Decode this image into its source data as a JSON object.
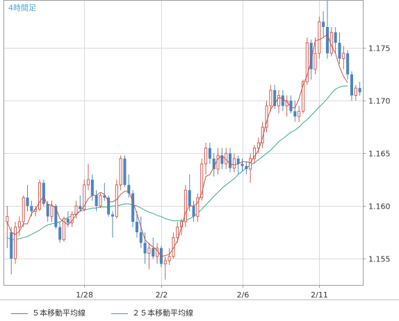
{
  "chart_data": {
    "type": "candlestick",
    "title": "4時間足",
    "xlabel": "",
    "ylabel": "",
    "ylim": [
      1.1525,
      1.1795
    ],
    "y_ticks": [
      "1.155",
      "1.160",
      "1.165",
      "1.170",
      "1.175"
    ],
    "y_tick_values": [
      1.155,
      1.16,
      1.165,
      1.17,
      1.175
    ],
    "x_ticks": [
      {
        "label": "1/28",
        "index": 19
      },
      {
        "label": "2/2",
        "index": 38
      },
      {
        "label": "2/6",
        "index": 58
      },
      {
        "label": "2/11",
        "index": 77
      }
    ],
    "grid": true,
    "legend_position": "bottom",
    "colors": {
      "up": "#d25a4f",
      "down": "#4a86c0",
      "ma5": "#c85040",
      "ma25": "#2eaa88",
      "grid": "#d9d9d9",
      "title": "#4aa6d8",
      "axis_text": "#333333"
    },
    "series_note": "candles are [open, high, low, close]",
    "candles": [
      [
        1.1585,
        1.16,
        1.156,
        1.159
      ],
      [
        1.1575,
        1.158,
        1.1535,
        1.155
      ],
      [
        1.155,
        1.1585,
        1.1545,
        1.158
      ],
      [
        1.158,
        1.159,
        1.1572,
        1.1585
      ],
      [
        1.1585,
        1.161,
        1.158,
        1.1608
      ],
      [
        1.1608,
        1.162,
        1.1595,
        1.16
      ],
      [
        1.16,
        1.1605,
        1.159,
        1.1595
      ],
      [
        1.1595,
        1.16,
        1.159,
        1.1597
      ],
      [
        1.1597,
        1.1625,
        1.1595,
        1.1622
      ],
      [
        1.1622,
        1.1625,
        1.16,
        1.1602
      ],
      [
        1.1602,
        1.1605,
        1.1585,
        1.159
      ],
      [
        1.159,
        1.1605,
        1.1585,
        1.16
      ],
      [
        1.16,
        1.1602,
        1.1578,
        1.158
      ],
      [
        1.158,
        1.1585,
        1.1565,
        1.1568
      ],
      [
        1.1568,
        1.159,
        1.1566,
        1.1588
      ],
      [
        1.1588,
        1.1595,
        1.158,
        1.1584
      ],
      [
        1.1584,
        1.1595,
        1.158,
        1.1592
      ],
      [
        1.1592,
        1.1605,
        1.1588,
        1.16
      ],
      [
        1.16,
        1.161,
        1.1595,
        1.1597
      ],
      [
        1.1597,
        1.1625,
        1.1595,
        1.162
      ],
      [
        1.162,
        1.164,
        1.1615,
        1.1625
      ],
      [
        1.1625,
        1.163,
        1.1605,
        1.161
      ],
      [
        1.161,
        1.1615,
        1.1595,
        1.16
      ],
      [
        1.16,
        1.1612,
        1.1598,
        1.161
      ],
      [
        1.161,
        1.1622,
        1.1605,
        1.1608
      ],
      [
        1.1608,
        1.161,
        1.159,
        1.1592
      ],
      [
        1.1592,
        1.1595,
        1.157,
        1.159
      ],
      [
        1.159,
        1.1625,
        1.1588,
        1.162
      ],
      [
        1.162,
        1.1648,
        1.1615,
        1.1645
      ],
      [
        1.1645,
        1.1648,
        1.1618,
        1.162
      ],
      [
        1.162,
        1.163,
        1.1608,
        1.1612
      ],
      [
        1.1612,
        1.1615,
        1.158,
        1.1585
      ],
      [
        1.1585,
        1.1595,
        1.157,
        1.1575
      ],
      [
        1.1575,
        1.159,
        1.156,
        1.1565
      ],
      [
        1.1565,
        1.1575,
        1.1545,
        1.1555
      ],
      [
        1.1555,
        1.1565,
        1.154,
        1.156
      ],
      [
        1.156,
        1.157,
        1.155,
        1.1552
      ],
      [
        1.1552,
        1.1565,
        1.1545,
        1.156
      ],
      [
        1.156,
        1.1562,
        1.1542,
        1.1545
      ],
      [
        1.1545,
        1.1552,
        1.153,
        1.1548
      ],
      [
        1.1548,
        1.156,
        1.1544,
        1.1552
      ],
      [
        1.1552,
        1.1575,
        1.155,
        1.157
      ],
      [
        1.157,
        1.1585,
        1.1565,
        1.158
      ],
      [
        1.158,
        1.1588,
        1.1572,
        1.1585
      ],
      [
        1.1585,
        1.162,
        1.158,
        1.1615
      ],
      [
        1.1615,
        1.163,
        1.1595,
        1.16
      ],
      [
        1.16,
        1.1605,
        1.1585,
        1.159
      ],
      [
        1.159,
        1.1612,
        1.1585,
        1.1608
      ],
      [
        1.1608,
        1.1645,
        1.1605,
        1.164
      ],
      [
        1.164,
        1.166,
        1.163,
        1.1655
      ],
      [
        1.1655,
        1.166,
        1.164,
        1.1645
      ],
      [
        1.1645,
        1.165,
        1.1628,
        1.1635
      ],
      [
        1.1635,
        1.1655,
        1.163,
        1.1648
      ],
      [
        1.1648,
        1.1655,
        1.1635,
        1.164
      ],
      [
        1.164,
        1.1655,
        1.1635,
        1.165
      ],
      [
        1.165,
        1.1655,
        1.1632,
        1.1636
      ],
      [
        1.1636,
        1.165,
        1.1632,
        1.1645
      ],
      [
        1.1645,
        1.1648,
        1.163,
        1.164
      ],
      [
        1.164,
        1.1645,
        1.1633,
        1.1638
      ],
      [
        1.1638,
        1.1642,
        1.163,
        1.1635
      ],
      [
        1.1635,
        1.165,
        1.1622,
        1.1645
      ],
      [
        1.1645,
        1.1658,
        1.164,
        1.1655
      ],
      [
        1.1655,
        1.1665,
        1.165,
        1.166
      ],
      [
        1.166,
        1.168,
        1.1655,
        1.1675
      ],
      [
        1.1675,
        1.17,
        1.167,
        1.1695
      ],
      [
        1.1695,
        1.1715,
        1.169,
        1.171
      ],
      [
        1.171,
        1.1715,
        1.1692,
        1.1695
      ],
      [
        1.1695,
        1.171,
        1.1688,
        1.1705
      ],
      [
        1.1705,
        1.171,
        1.169,
        1.1695
      ],
      [
        1.1695,
        1.1705,
        1.1685,
        1.17
      ],
      [
        1.17,
        1.1705,
        1.1688,
        1.169
      ],
      [
        1.169,
        1.17,
        1.168,
        1.1685
      ],
      [
        1.1685,
        1.1695,
        1.168,
        1.169
      ],
      [
        1.169,
        1.172,
        1.1688,
        1.1718
      ],
      [
        1.1718,
        1.176,
        1.1715,
        1.1755
      ],
      [
        1.1755,
        1.1758,
        1.172,
        1.173
      ],
      [
        1.173,
        1.176,
        1.1725,
        1.1745
      ],
      [
        1.1745,
        1.178,
        1.174,
        1.1775
      ],
      [
        1.1775,
        1.1785,
        1.176,
        1.177
      ],
      [
        1.177,
        1.1795,
        1.174,
        1.1745
      ],
      [
        1.1745,
        1.177,
        1.1742,
        1.1765
      ],
      [
        1.1765,
        1.177,
        1.1745,
        1.1755
      ],
      [
        1.1755,
        1.1765,
        1.1735,
        1.174
      ],
      [
        1.174,
        1.1752,
        1.173,
        1.1745
      ],
      [
        1.1745,
        1.1748,
        1.172,
        1.1725
      ],
      [
        1.1725,
        1.1728,
        1.17,
        1.1705
      ],
      [
        1.1705,
        1.1715,
        1.17,
        1.1712
      ],
      [
        1.1712,
        1.1718,
        1.1705,
        1.1708
      ]
    ],
    "series": [
      {
        "name": "５本移動平均線",
        "values": [
          1.1585,
          1.1575,
          1.1573,
          1.1576,
          1.1583,
          1.1583,
          1.1593,
          1.1597,
          1.1604,
          1.1609,
          1.1601,
          1.1601,
          1.1598,
          1.1588,
          1.1585,
          1.1582,
          1.1586,
          1.1592,
          1.1595,
          1.16,
          1.1607,
          1.161,
          1.161,
          1.1613,
          1.1611,
          1.1604,
          1.1604,
          1.1606,
          1.1611,
          1.1614,
          1.1614,
          1.1604,
          1.1593,
          1.158,
          1.1568,
          1.1564,
          1.1561,
          1.1558,
          1.1552,
          1.1553,
          1.1554,
          1.156,
          1.1567,
          1.158,
          1.1594,
          1.16,
          1.16,
          1.1603,
          1.1612,
          1.1628,
          1.163,
          1.1637,
          1.1645,
          1.1648,
          1.1644,
          1.164,
          1.1639,
          1.164,
          1.1642,
          1.1642,
          1.1641,
          1.1647,
          1.1653,
          1.1665,
          1.168,
          1.1692,
          1.1697,
          1.1703,
          1.1702,
          1.1699,
          1.1694,
          1.1693,
          1.1702,
          1.1715,
          1.1724,
          1.1738,
          1.1757,
          1.1758,
          1.176,
          1.1763,
          1.1752,
          1.1745,
          1.1732,
          1.1723,
          1.1717
        ]
      },
      {
        "name": "２５本移動平均線",
        "values": [
          1.157,
          1.1568,
          1.1568,
          1.1569,
          1.157,
          1.1571,
          1.1573,
          1.1575,
          1.1577,
          1.158,
          1.1582,
          1.1583,
          1.1584,
          1.1585,
          1.1587,
          1.1589,
          1.1591,
          1.1593,
          1.1595,
          1.1596,
          1.1597,
          1.1598,
          1.1598,
          1.1599,
          1.1599,
          1.1599,
          1.16,
          1.16,
          1.1601,
          1.1602,
          1.1602,
          1.1601,
          1.16,
          1.1598,
          1.1596,
          1.1594,
          1.1593,
          1.1591,
          1.159,
          1.1588,
          1.1587,
          1.1586,
          1.1586,
          1.1586,
          1.1586,
          1.1588,
          1.159,
          1.1593,
          1.1597,
          1.1601,
          1.1605,
          1.1609,
          1.1613,
          1.1617,
          1.162,
          1.1623,
          1.1626,
          1.163,
          1.1633,
          1.1636,
          1.1639,
          1.1641,
          1.1644,
          1.1647,
          1.165,
          1.1653,
          1.1657,
          1.1661,
          1.1664,
          1.1667,
          1.167,
          1.1672,
          1.1675,
          1.1679,
          1.1682,
          1.1686,
          1.169,
          1.1694,
          1.1698,
          1.1702,
          1.1707,
          1.1711,
          1.1713,
          1.1714,
          1.1714
        ]
      }
    ]
  }
}
